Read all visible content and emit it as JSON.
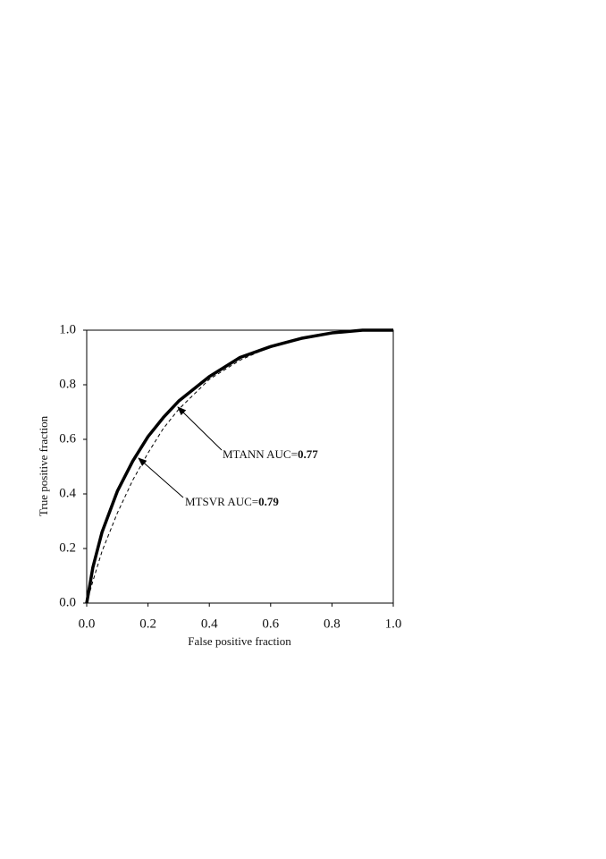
{
  "chart_data": {
    "type": "line",
    "xlabel": "False positive fraction",
    "ylabel": "True positive fraction",
    "x": [
      0,
      0.02,
      0.05,
      0.1,
      0.15,
      0.2,
      0.25,
      0.3,
      0.4,
      0.5,
      0.6,
      0.7,
      0.8,
      0.9,
      1.0
    ],
    "series": [
      {
        "color": "#000000",
        "style": "solid",
        "values": [
          0,
          0.13,
          0.26,
          0.41,
          0.52,
          0.61,
          0.68,
          0.74,
          0.83,
          0.9,
          0.94,
          0.97,
          0.99,
          1.0,
          1.0
        ]
      },
      {
        "color": "#000000",
        "style": "dashed",
        "values": [
          0,
          0.08,
          0.19,
          0.33,
          0.45,
          0.55,
          0.64,
          0.71,
          0.82,
          0.89,
          0.94,
          0.97,
          0.99,
          1.0,
          1.0
        ]
      }
    ],
    "annotations": [
      {
        "label": "MTANN AUC=",
        "value": "0.77"
      },
      {
        "label": "MTSVR AUC=",
        "value": "0.79"
      }
    ],
    "xlim": [
      0,
      1
    ],
    "ylim": [
      0,
      1
    ],
    "xticks": [
      {
        "value": 0,
        "label": "0.0"
      },
      0.2,
      0.4,
      0.6,
      0.8,
      {
        "value": 1,
        "label": "1.0"
      }
    ],
    "yticks": [
      {
        "value": 0,
        "label": "0.0"
      },
      0.2,
      0.4,
      0.6,
      0.8,
      {
        "value": 1,
        "label": "1.0"
      }
    ],
    "grid": false
  }
}
